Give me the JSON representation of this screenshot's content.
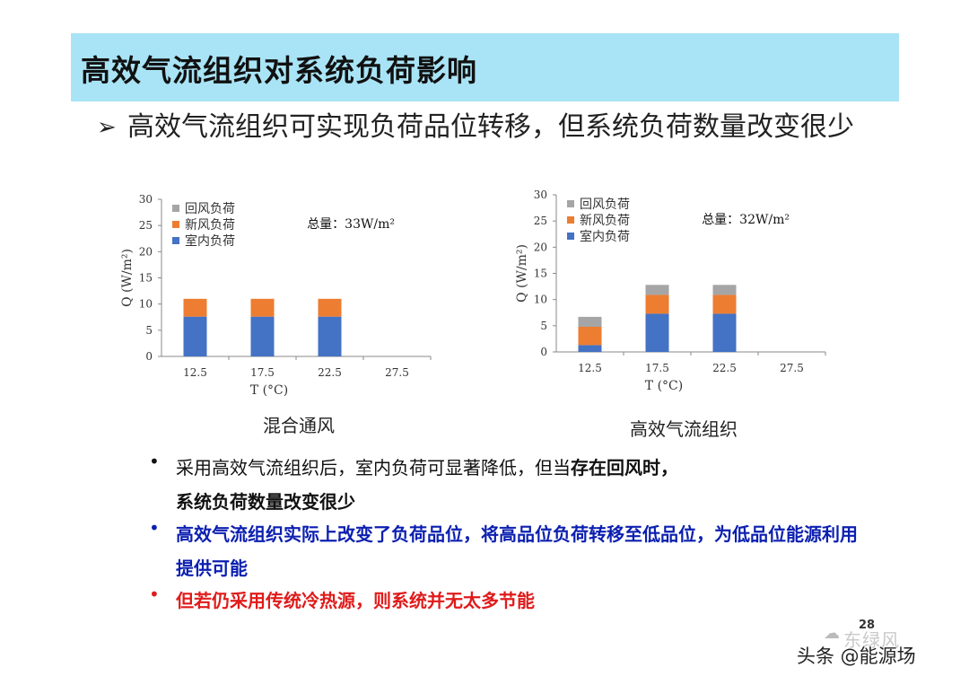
{
  "title": "高效气流组织对系统负荷影响",
  "main_bullet": "高效气流组织可实现负荷品位转移，但系统负荷数量改变很少",
  "arrow_glyph": "➢",
  "charts": {
    "left_caption": "混合通风",
    "right_caption": "高效气流组织"
  },
  "chart_data": [
    {
      "type": "bar",
      "stacked": true,
      "categories": [
        "12.5",
        "17.5",
        "22.5",
        "27.5"
      ],
      "series": [
        {
          "name": "室内负荷",
          "color": "#4472c4",
          "values": [
            7.6,
            7.6,
            7.6,
            0
          ]
        },
        {
          "name": "新风负荷",
          "color": "#ed7d31",
          "values": [
            3.4,
            3.4,
            3.4,
            0
          ]
        },
        {
          "name": "回风负荷",
          "color": "#a5a5a5",
          "values": [
            0,
            0,
            0,
            0
          ]
        }
      ],
      "annotation": "总量：33W/m²",
      "xlabel": "T (°C)",
      "ylabel": "Q (W/m²)",
      "ylim": [
        0,
        30
      ],
      "yticks": [
        "0",
        "5",
        "10",
        "15",
        "20",
        "25",
        "30"
      ],
      "legend": "top-left"
    },
    {
      "type": "bar",
      "stacked": true,
      "categories": [
        "12.5",
        "17.5",
        "22.5",
        "27.5"
      ],
      "series": [
        {
          "name": "室内负荷",
          "color": "#4472c4",
          "values": [
            1.3,
            7.3,
            7.3,
            0
          ]
        },
        {
          "name": "新风负荷",
          "color": "#ed7d31",
          "values": [
            3.5,
            3.6,
            3.6,
            0
          ]
        },
        {
          "name": "回风负荷",
          "color": "#a5a5a5",
          "values": [
            1.9,
            1.9,
            1.9,
            0
          ]
        }
      ],
      "annotation": "总量：32W/m²",
      "xlabel": "T (°C)",
      "ylabel": "Q (W/m²)",
      "ylim": [
        0,
        30
      ],
      "yticks": [
        "0",
        "5",
        "10",
        "15",
        "20",
        "25",
        "30"
      ],
      "legend": "top-left"
    }
  ],
  "notes": {
    "note1_part1": "采用高效气流组织后，室内负荷可显著降低，但当",
    "note1_bold": "存在回风时，",
    "note1_line2": "系统负荷数量改变很少",
    "note2": "高效气流组织实际上改变了负荷品位，将高品位负荷转移至低品位，为低品位能源利用提供可能",
    "note3": "但若仍采用传统冷热源，则系统并无太多节能",
    "bullet": "•"
  },
  "page_number": "28",
  "watermark": "东绿风",
  "footer_source": "头条 @能源场"
}
